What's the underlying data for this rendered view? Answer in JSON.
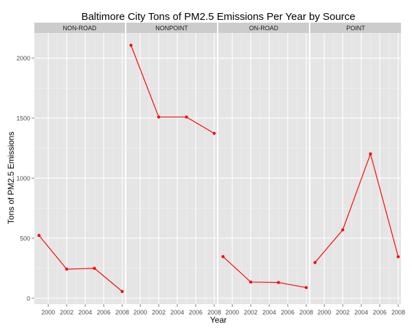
{
  "chart_data": {
    "type": "line",
    "title": "Baltimore City Tons of PM2.5 Emissions Per Year by Source",
    "xlabel": "Year",
    "ylabel": "Tons of PM2.5 Emissions",
    "x": [
      1999,
      2002,
      2005,
      2008
    ],
    "xticks": [
      2000,
      2002,
      2004,
      2006,
      2008
    ],
    "yticks": [
      0,
      500,
      1000,
      1500,
      2000
    ],
    "xlim": [
      1998.5,
      2008.3
    ],
    "ylim": [
      -50,
      2210
    ],
    "grid": true,
    "line_color": "#ff0000",
    "facets": [
      {
        "name": "NON-ROAD",
        "values": [
          522.9,
          241.8,
          248.9,
          55.8
        ]
      },
      {
        "name": "NONPOINT",
        "values": [
          2107.6,
          1509.5,
          1509.5,
          1373.2
        ]
      },
      {
        "name": "ON-ROAD",
        "values": [
          346.8,
          134.3,
          130.4,
          88.3
        ]
      },
      {
        "name": "POINT",
        "values": [
          296.8,
          569.3,
          1202.5,
          344.98
        ]
      }
    ]
  }
}
